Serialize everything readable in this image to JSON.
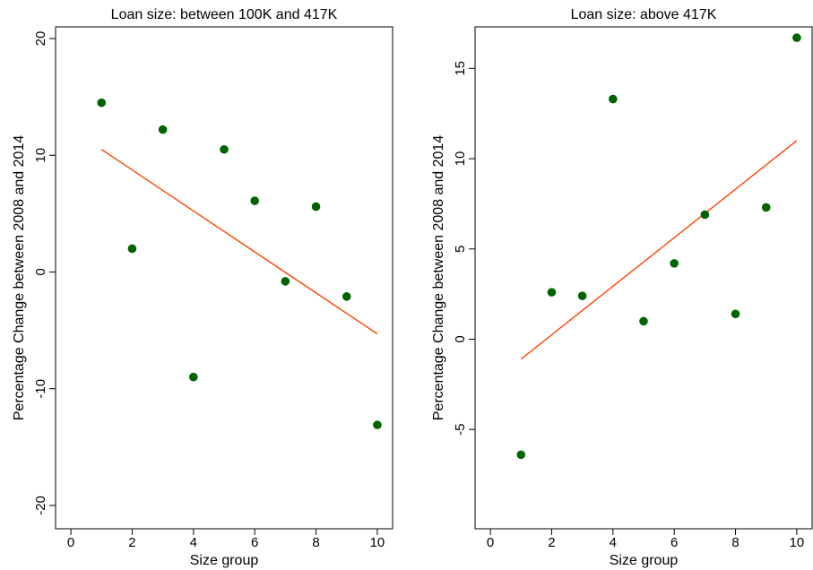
{
  "colors": {
    "point": "#006400",
    "fit_line": "#ff4500",
    "axis": "#000000"
  },
  "chart_data": [
    {
      "type": "scatter",
      "title": "Loan size: between 100K and 417K",
      "xlabel": "Size group",
      "ylabel": "Percentage Change between 2008 and 2014",
      "xlim": [
        -0.5,
        10.5
      ],
      "ylim": [
        -22,
        21
      ],
      "xticks": [
        0,
        2,
        4,
        6,
        8,
        10
      ],
      "yticks": [
        -20,
        -10,
        0,
        10,
        20
      ],
      "grid": false,
      "points": [
        {
          "x": 1,
          "y": 14.5
        },
        {
          "x": 2,
          "y": 2.0
        },
        {
          "x": 3,
          "y": 12.2
        },
        {
          "x": 4,
          "y": -9.0
        },
        {
          "x": 5,
          "y": 10.5
        },
        {
          "x": 6,
          "y": 6.1
        },
        {
          "x": 7,
          "y": -0.8
        },
        {
          "x": 8,
          "y": 5.6
        },
        {
          "x": 9,
          "y": -2.1
        },
        {
          "x": 10,
          "y": -13.1
        }
      ],
      "fit_line": {
        "x": [
          1,
          10
        ],
        "y": [
          10.5,
          -5.3
        ]
      }
    },
    {
      "type": "scatter",
      "title": "Loan size: above 417K",
      "xlabel": "Size group",
      "ylabel": "Percentage Change between 2008 and 2014",
      "xlim": [
        -0.5,
        10.5
      ],
      "ylim": [
        -10.5,
        17.3
      ],
      "xticks": [
        0,
        2,
        4,
        6,
        8,
        10
      ],
      "yticks": [
        -5,
        0,
        5,
        10,
        15
      ],
      "grid": false,
      "points": [
        {
          "x": 1,
          "y": -6.4
        },
        {
          "x": 2,
          "y": 2.6
        },
        {
          "x": 3,
          "y": 2.4
        },
        {
          "x": 4,
          "y": 13.3
        },
        {
          "x": 5,
          "y": 1.0
        },
        {
          "x": 6,
          "y": 4.2
        },
        {
          "x": 7,
          "y": 6.9
        },
        {
          "x": 8,
          "y": 1.4
        },
        {
          "x": 9,
          "y": 7.3
        },
        {
          "x": 10,
          "y": 16.7
        }
      ],
      "fit_line": {
        "x": [
          1,
          10
        ],
        "y": [
          -1.1,
          11.0
        ]
      }
    }
  ]
}
